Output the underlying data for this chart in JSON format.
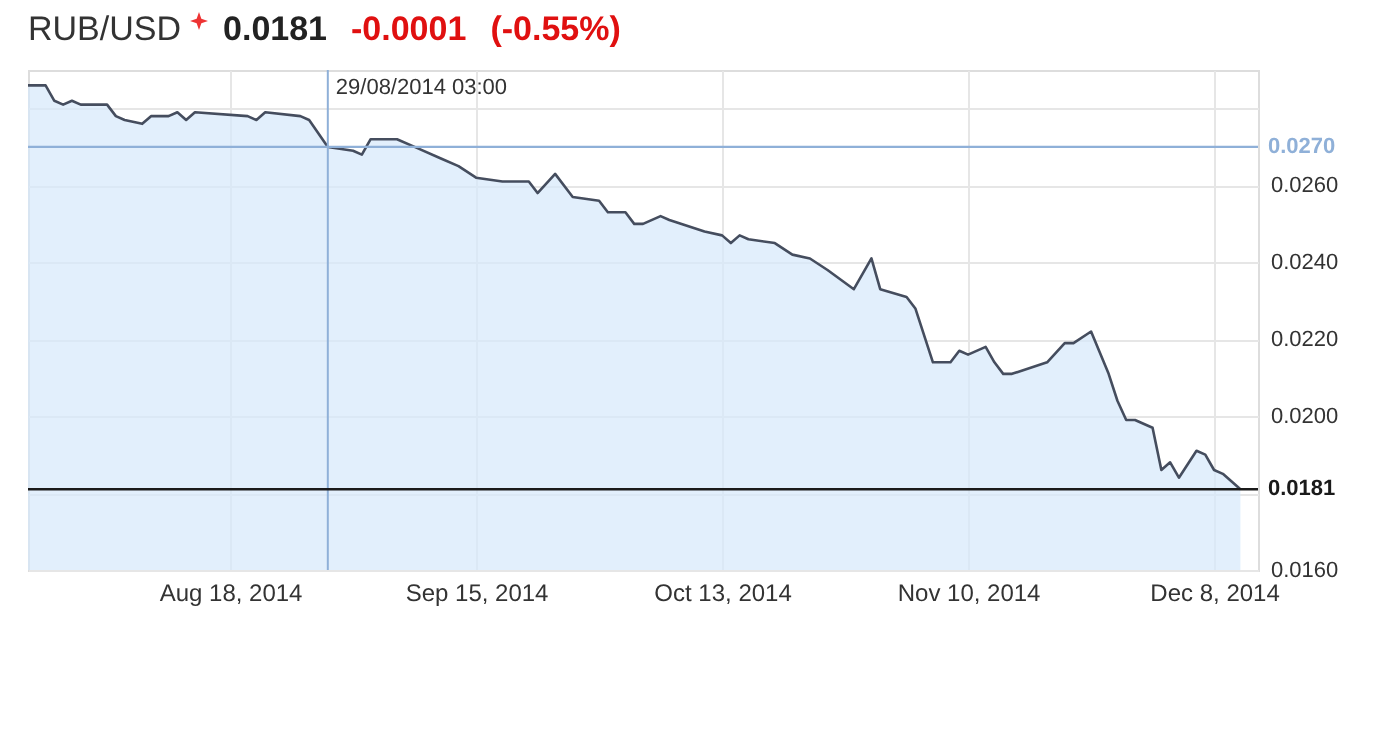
{
  "chart_data": {
    "type": "area",
    "title": "RUB/USD",
    "annotations": [
      "0.0181",
      "-0.0001",
      "(-0.55%)"
    ],
    "x": [
      "2014-07-26",
      "2014-07-28",
      "2014-07-29",
      "2014-07-30",
      "2014-07-31",
      "2014-08-01",
      "2014-08-04",
      "2014-08-05",
      "2014-08-06",
      "2014-08-08",
      "2014-08-09",
      "2014-08-11",
      "2014-08-12",
      "2014-08-13",
      "2014-08-14",
      "2014-08-20",
      "2014-08-21",
      "2014-08-22",
      "2014-08-26",
      "2014-08-27",
      "2014-08-29T03:00",
      "2014-09-01",
      "2014-09-02",
      "2014-09-03",
      "2014-09-06",
      "2014-09-08",
      "2014-09-11",
      "2014-09-13",
      "2014-09-15",
      "2014-09-18",
      "2014-09-21",
      "2014-09-22",
      "2014-09-24",
      "2014-09-26",
      "2014-09-29",
      "2014-09-30",
      "2014-10-02",
      "2014-10-03",
      "2014-10-04",
      "2014-10-06",
      "2014-10-07",
      "2014-10-11",
      "2014-10-13",
      "2014-10-14",
      "2014-10-15",
      "2014-10-16",
      "2014-10-19",
      "2014-10-21",
      "2014-10-23",
      "2014-10-25",
      "2014-10-28",
      "2014-10-30",
      "2014-10-31",
      "2014-11-03",
      "2014-11-04",
      "2014-11-06",
      "2014-11-08",
      "2014-11-09",
      "2014-11-10",
      "2014-11-12",
      "2014-11-13",
      "2014-11-14",
      "2014-11-15",
      "2014-11-19",
      "2014-11-21",
      "2014-11-22",
      "2014-11-24",
      "2014-11-26",
      "2014-11-27",
      "2014-11-28",
      "2014-11-29",
      "2014-12-01",
      "2014-12-02",
      "2014-12-03",
      "2014-12-04",
      "2014-12-06",
      "2014-12-07",
      "2014-12-08",
      "2014-12-09",
      "2014-12-11"
    ],
    "series": [
      {
        "color": "#d6e8fb",
        "values": [
          0.0286,
          0.0286,
          0.0282,
          0.0281,
          0.0282,
          0.0281,
          0.0281,
          0.0278,
          0.0277,
          0.0276,
          0.0278,
          0.0278,
          0.0279,
          0.0277,
          0.0279,
          0.0278,
          0.0277,
          0.0279,
          0.0278,
          0.0277,
          0.027,
          0.0269,
          0.0268,
          0.0272,
          0.0272,
          0.027,
          0.0267,
          0.0265,
          0.0262,
          0.0261,
          0.0261,
          0.0258,
          0.0263,
          0.0257,
          0.0256,
          0.0253,
          0.0253,
          0.025,
          0.025,
          0.0252,
          0.0251,
          0.0248,
          0.0247,
          0.0245,
          0.0247,
          0.0246,
          0.0245,
          0.0242,
          0.0241,
          0.0238,
          0.0233,
          0.0241,
          0.0233,
          0.0231,
          0.0228,
          0.0214,
          0.0214,
          0.0217,
          0.0216,
          0.0218,
          0.0214,
          0.0211,
          0.0211,
          0.0214,
          0.0219,
          0.0219,
          0.0222,
          0.0211,
          0.0204,
          0.0199,
          0.0199,
          0.0197,
          0.0186,
          0.0188,
          0.0184,
          0.0191,
          0.019,
          0.0186,
          0.0185,
          0.0181
        ]
      }
    ],
    "xlim": [
      "2014-07-26",
      "2014-12-13"
    ],
    "xticks": [
      {
        "value": "2014-08-18",
        "label": "Aug 18, 2014"
      },
      {
        "value": "2014-09-15",
        "label": "Sep 15, 2014"
      },
      {
        "value": "2014-10-13",
        "label": "Oct 13, 2014"
      },
      {
        "value": "2014-11-10",
        "label": "Nov 10, 2014"
      },
      {
        "value": "2014-12-08",
        "label": "Dec 8, 2014"
      }
    ],
    "ylim": [
      0.016,
      0.029
    ],
    "yticks": [
      {
        "value": 0.016,
        "label": "0.0160"
      },
      {
        "value": 0.018,
        "label": null
      },
      {
        "value": 0.02,
        "label": "0.0200"
      },
      {
        "value": 0.022,
        "label": "0.0220"
      },
      {
        "value": 0.024,
        "label": "0.0240"
      },
      {
        "value": 0.026,
        "label": "0.0260"
      },
      {
        "value": 0.028,
        "label": null
      }
    ],
    "ref_lines": [
      {
        "axis": "x",
        "value": "2014-08-29T03:00",
        "label": "29/08/2014 03:00",
        "color": "#8fb0d8"
      },
      {
        "axis": "y",
        "value": 0.027,
        "label": "0.0270",
        "color": "#8fb0d8"
      },
      {
        "axis": "y",
        "value": 0.0181,
        "label": "0.0181",
        "color": "#1a1a1a"
      }
    ],
    "grid": true,
    "marker": "none",
    "line_style": "solid"
  }
}
